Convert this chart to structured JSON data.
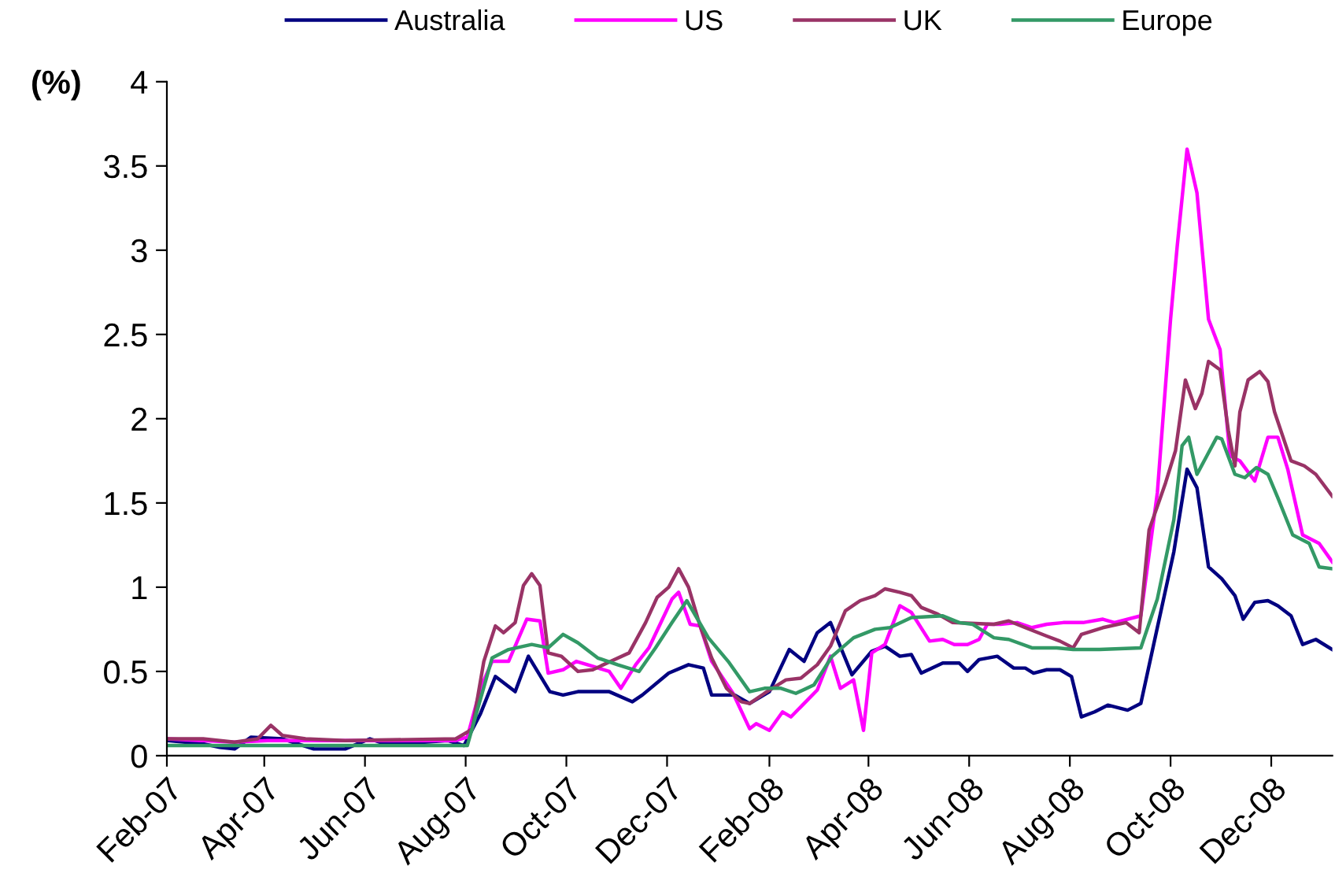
{
  "chart_data": {
    "type": "line",
    "ylabel": "(%)",
    "legend": "top",
    "grid": false,
    "marker": "none",
    "line_style": "solid",
    "xlim": [
      "2007-02-01",
      "2009-01-07"
    ],
    "xticks": [
      {
        "value": "2007-02-01",
        "label": "Feb-07"
      },
      {
        "value": "2007-04-01",
        "label": "Apr-07"
      },
      {
        "value": "2007-06-01",
        "label": "Jun-07"
      },
      {
        "value": "2007-08-01",
        "label": "Aug-07"
      },
      {
        "value": "2007-10-01",
        "label": "Oct-07"
      },
      {
        "value": "2007-12-01",
        "label": "Dec-07"
      },
      {
        "value": "2008-02-01",
        "label": "Feb-08"
      },
      {
        "value": "2008-04-01",
        "label": "Apr-08"
      },
      {
        "value": "2008-06-01",
        "label": "Jun-08"
      },
      {
        "value": "2008-08-01",
        "label": "Aug-08"
      },
      {
        "value": "2008-10-01",
        "label": "Oct-08"
      },
      {
        "value": "2008-12-01",
        "label": "Dec-08"
      }
    ],
    "ylim": [
      0,
      4
    ],
    "yticks": [
      0,
      0.5,
      1,
      1.5,
      2,
      2.5,
      3,
      3.5,
      4
    ],
    "series": [
      {
        "name": "Australia",
        "color": "#000080",
        "x": [
          "2007-02-01",
          "2007-02-23",
          "2007-03-05",
          "2007-03-14",
          "2007-03-24",
          "2007-04-12",
          "2007-05-01",
          "2007-05-20",
          "2007-06-04",
          "2007-06-13",
          "2007-07-07",
          "2007-07-21",
          "2007-07-31",
          "2007-08-10",
          "2007-08-19",
          "2007-08-31",
          "2007-09-08",
          "2007-09-21",
          "2007-09-29",
          "2007-10-08",
          "2007-10-27",
          "2007-11-10",
          "2007-11-16",
          "2007-12-02",
          "2007-12-14",
          "2007-12-23",
          "2007-12-28",
          "2008-01-11",
          "2008-01-20",
          "2008-02-01",
          "2008-02-13",
          "2008-02-22",
          "2008-03-01",
          "2008-03-09",
          "2008-03-22",
          "2008-04-03",
          "2008-04-11",
          "2008-04-20",
          "2008-04-27",
          "2008-05-03",
          "2008-05-16",
          "2008-05-26",
          "2008-05-31",
          "2008-06-07",
          "2008-06-18",
          "2008-06-28",
          "2008-07-05",
          "2008-07-10",
          "2008-07-18",
          "2008-07-26",
          "2008-08-02",
          "2008-08-08",
          "2008-08-16",
          "2008-08-24",
          "2008-09-05",
          "2008-09-13",
          "2008-10-03",
          "2008-10-11",
          "2008-10-17",
          "2008-10-24",
          "2008-11-01",
          "2008-11-09",
          "2008-11-14",
          "2008-11-21",
          "2008-11-29",
          "2008-12-05",
          "2008-12-13",
          "2008-12-20",
          "2008-12-28",
          "2009-01-07"
        ],
        "values": [
          0.09,
          0.07,
          0.05,
          0.04,
          0.11,
          0.1,
          0.04,
          0.04,
          0.1,
          0.07,
          0.08,
          0.09,
          0.06,
          0.25,
          0.47,
          0.38,
          0.59,
          0.38,
          0.36,
          0.38,
          0.38,
          0.32,
          0.36,
          0.49,
          0.54,
          0.52,
          0.36,
          0.36,
          0.31,
          0.38,
          0.63,
          0.56,
          0.73,
          0.79,
          0.48,
          0.62,
          0.65,
          0.59,
          0.6,
          0.49,
          0.55,
          0.55,
          0.5,
          0.57,
          0.59,
          0.52,
          0.52,
          0.49,
          0.51,
          0.51,
          0.47,
          0.23,
          0.26,
          0.3,
          0.27,
          0.31,
          1.21,
          1.7,
          1.59,
          1.12,
          1.05,
          0.95,
          0.81,
          0.91,
          0.92,
          0.89,
          0.83,
          0.66,
          0.69,
          0.63
        ]
      },
      {
        "name": "US",
        "color": "#ff00ff",
        "x": [
          "2007-02-01",
          "2007-03-14",
          "2007-04-03",
          "2007-05-30",
          "2007-07-26",
          "2007-08-02",
          "2007-08-10",
          "2007-08-17",
          "2007-08-27",
          "2007-09-07",
          "2007-09-15",
          "2007-09-20",
          "2007-09-29",
          "2007-10-07",
          "2007-10-17",
          "2007-10-27",
          "2007-11-03",
          "2007-11-12",
          "2007-11-20",
          "2007-12-04",
          "2007-12-08",
          "2007-12-15",
          "2007-12-21",
          "2007-12-28",
          "2008-01-10",
          "2008-01-20",
          "2008-01-24",
          "2008-02-01",
          "2008-02-09",
          "2008-02-14",
          "2008-03-01",
          "2008-03-09",
          "2008-03-15",
          "2008-03-23",
          "2008-03-29",
          "2008-04-03",
          "2008-04-11",
          "2008-04-20",
          "2008-04-27",
          "2008-05-08",
          "2008-05-16",
          "2008-05-23",
          "2008-05-31",
          "2008-06-07",
          "2008-06-12",
          "2008-06-20",
          "2008-06-30",
          "2008-07-09",
          "2008-07-18",
          "2008-07-28",
          "2008-08-09",
          "2008-08-21",
          "2008-08-28",
          "2008-09-13",
          "2008-09-23",
          "2008-10-01",
          "2008-10-05",
          "2008-10-11",
          "2008-10-17",
          "2008-10-24",
          "2008-10-31",
          "2008-11-06",
          "2008-11-12",
          "2008-11-21",
          "2008-11-29",
          "2008-12-05",
          "2008-12-11",
          "2008-12-20",
          "2008-12-30",
          "2009-01-07"
        ],
        "values": [
          0.1,
          0.08,
          0.09,
          0.09,
          0.09,
          0.11,
          0.4,
          0.56,
          0.56,
          0.81,
          0.8,
          0.49,
          0.51,
          0.56,
          0.53,
          0.5,
          0.4,
          0.54,
          0.64,
          0.93,
          0.97,
          0.78,
          0.77,
          0.56,
          0.37,
          0.16,
          0.19,
          0.15,
          0.26,
          0.23,
          0.39,
          0.59,
          0.4,
          0.45,
          0.15,
          0.61,
          0.66,
          0.89,
          0.85,
          0.68,
          0.69,
          0.66,
          0.66,
          0.69,
          0.78,
          0.78,
          0.79,
          0.76,
          0.78,
          0.79,
          0.79,
          0.81,
          0.79,
          0.83,
          1.56,
          2.59,
          3.02,
          3.6,
          3.34,
          2.59,
          2.41,
          1.78,
          1.75,
          1.63,
          1.89,
          1.89,
          1.7,
          1.31,
          1.26,
          1.15
        ]
      },
      {
        "name": "UK",
        "color": "#993366",
        "x": [
          "2007-02-01",
          "2007-02-23",
          "2007-03-14",
          "2007-03-28",
          "2007-04-05",
          "2007-04-12",
          "2007-04-26",
          "2007-05-20",
          "2007-07-26",
          "2007-08-02",
          "2007-08-05",
          "2007-08-12",
          "2007-08-19",
          "2007-08-24",
          "2007-08-31",
          "2007-09-05",
          "2007-09-10",
          "2007-09-15",
          "2007-09-20",
          "2007-09-28",
          "2007-10-08",
          "2007-10-17",
          "2007-10-30",
          "2007-11-08",
          "2007-11-18",
          "2007-11-25",
          "2007-12-02",
          "2007-12-08",
          "2007-12-14",
          "2007-12-21",
          "2007-12-28",
          "2008-01-06",
          "2008-01-15",
          "2008-01-20",
          "2008-01-29",
          "2008-02-11",
          "2008-02-20",
          "2008-03-01",
          "2008-03-09",
          "2008-03-18",
          "2008-03-27",
          "2008-04-05",
          "2008-04-11",
          "2008-04-20",
          "2008-04-27",
          "2008-05-03",
          "2008-05-13",
          "2008-05-22",
          "2008-06-16",
          "2008-06-25",
          "2008-07-05",
          "2008-07-18",
          "2008-07-26",
          "2008-08-03",
          "2008-08-08",
          "2008-08-21",
          "2008-09-04",
          "2008-09-12",
          "2008-09-18",
          "2008-09-28",
          "2008-10-04",
          "2008-10-10",
          "2008-10-16",
          "2008-10-20",
          "2008-10-24",
          "2008-10-31",
          "2008-11-05",
          "2008-11-09",
          "2008-11-12",
          "2008-11-17",
          "2008-11-24",
          "2008-11-29",
          "2008-12-03",
          "2008-12-13",
          "2008-12-21",
          "2008-12-28",
          "2009-01-07"
        ],
        "values": [
          0.1,
          0.1,
          0.08,
          0.1,
          0.18,
          0.12,
          0.1,
          0.09,
          0.1,
          0.14,
          0.16,
          0.56,
          0.77,
          0.73,
          0.79,
          1.01,
          1.08,
          1.01,
          0.61,
          0.59,
          0.5,
          0.51,
          0.57,
          0.61,
          0.79,
          0.94,
          1.0,
          1.11,
          1.0,
          0.77,
          0.58,
          0.4,
          0.32,
          0.31,
          0.37,
          0.45,
          0.46,
          0.54,
          0.65,
          0.86,
          0.92,
          0.95,
          0.99,
          0.97,
          0.95,
          0.88,
          0.84,
          0.79,
          0.78,
          0.8,
          0.76,
          0.71,
          0.68,
          0.64,
          0.72,
          0.76,
          0.79,
          0.73,
          1.34,
          1.62,
          1.81,
          2.23,
          2.06,
          2.15,
          2.34,
          2.29,
          1.93,
          1.72,
          2.04,
          2.23,
          2.28,
          2.22,
          2.04,
          1.75,
          1.72,
          1.67,
          1.54
        ]
      },
      {
        "name": "Europe",
        "color": "#339966",
        "x": [
          "2007-02-01",
          "2007-08-02",
          "2007-08-17",
          "2007-08-27",
          "2007-09-10",
          "2007-09-20",
          "2007-09-29",
          "2007-10-08",
          "2007-10-20",
          "2007-11-01",
          "2007-11-14",
          "2007-11-24",
          "2007-12-04",
          "2007-12-13",
          "2007-12-26",
          "2008-01-07",
          "2008-01-20",
          "2008-01-29",
          "2008-02-08",
          "2008-02-17",
          "2008-02-28",
          "2008-03-10",
          "2008-03-23",
          "2008-04-05",
          "2008-04-14",
          "2008-04-27",
          "2008-05-16",
          "2008-05-26",
          "2008-06-03",
          "2008-06-16",
          "2008-06-25",
          "2008-07-09",
          "2008-07-24",
          "2008-08-03",
          "2008-08-19",
          "2008-09-13",
          "2008-09-23",
          "2008-10-03",
          "2008-10-08",
          "2008-10-12",
          "2008-10-17",
          "2008-10-23",
          "2008-10-29",
          "2008-11-01",
          "2008-11-09",
          "2008-11-15",
          "2008-11-22",
          "2008-11-29",
          "2008-12-05",
          "2008-12-14",
          "2008-12-24",
          "2008-12-30",
          "2009-01-07"
        ],
        "values": [
          0.06,
          0.06,
          0.58,
          0.63,
          0.66,
          0.64,
          0.72,
          0.67,
          0.58,
          0.54,
          0.5,
          0.64,
          0.79,
          0.92,
          0.7,
          0.56,
          0.38,
          0.4,
          0.4,
          0.37,
          0.42,
          0.59,
          0.7,
          0.75,
          0.76,
          0.82,
          0.83,
          0.79,
          0.78,
          0.7,
          0.69,
          0.64,
          0.64,
          0.63,
          0.63,
          0.64,
          0.93,
          1.4,
          1.84,
          1.89,
          1.67,
          1.78,
          1.89,
          1.88,
          1.67,
          1.65,
          1.71,
          1.67,
          1.53,
          1.31,
          1.26,
          1.12,
          1.11
        ]
      }
    ]
  }
}
